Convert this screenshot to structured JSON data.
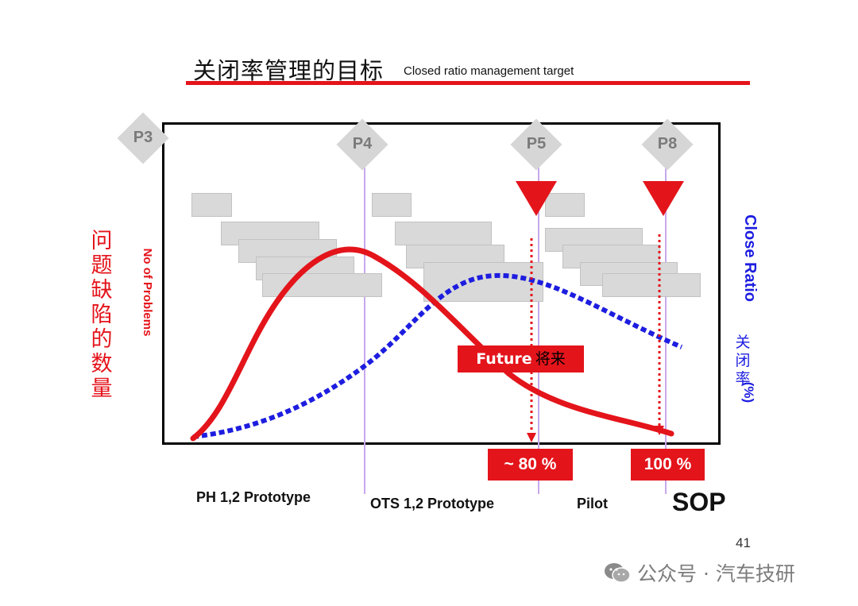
{
  "title": {
    "cn": "关闭率管理的目标",
    "en": "Closed ratio management target"
  },
  "gates": [
    "P3",
    "P4",
    "P5",
    "P8"
  ],
  "axis_left": {
    "cn": "问题缺陷的数量",
    "en": "No of Problems"
  },
  "axis_right": {
    "en": "Close Ratio",
    "cn": "关闭率",
    "unit": "(%)"
  },
  "future": {
    "en": "Future",
    "cn": "将来"
  },
  "targets": {
    "p5": "~ 80 %",
    "p8": "100 %"
  },
  "phases": {
    "ph": "PH 1,2 Prototype",
    "ots": "OTS 1,2 Prototype",
    "pilot": "Pilot",
    "sop": "SOP"
  },
  "page_number": "41",
  "watermark": "公众号 · 汽车技研",
  "colors": {
    "red": "#e4141b",
    "blue": "#1d1de0",
    "gray_box": "#d9d9d9",
    "gate_line": "#c8a8ec"
  },
  "icons": {
    "triangle": "down-triangle-marker-icon",
    "wechat": "wechat-icon"
  }
}
